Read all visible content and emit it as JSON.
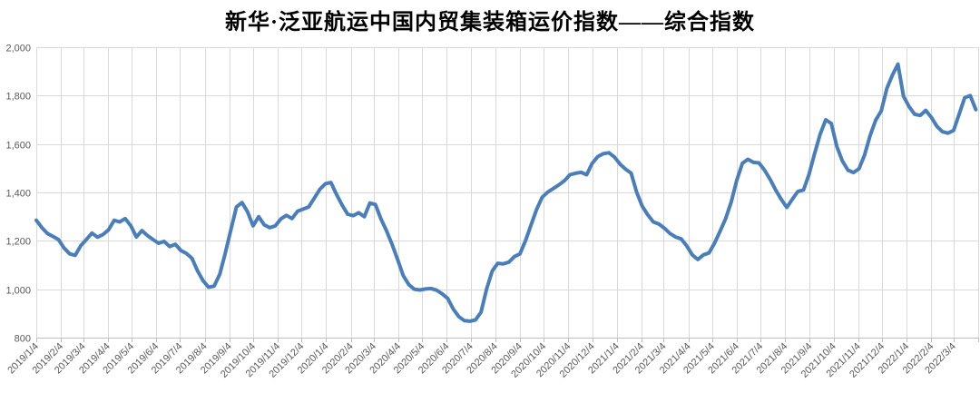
{
  "title": "新华·泛亚航运中国内贸集装箱运价指数——综合指数",
  "colors": {
    "line": "#4a7ebb",
    "gridline": "#d9d9d9",
    "axis_line": "#bfbfbf",
    "tick_text": "#595959",
    "title_text": "#000000",
    "background": "#ffffff"
  },
  "chart_data": {
    "type": "line",
    "title": "新华·泛亚航运中国内贸集装箱运价指数——综合指数",
    "xlabel": "",
    "ylabel": "",
    "ylim": [
      800,
      2000
    ],
    "y_tick_labels": [
      "2,000",
      "1,800",
      "1,600",
      "1,400",
      "1,200",
      "1,000",
      "800"
    ],
    "y_tick_values": [
      2000,
      1800,
      1600,
      1400,
      1200,
      1000,
      800
    ],
    "grid": true,
    "legend_position": "none",
    "x_axis_start": "2019/1/4",
    "x_axis_end": "2022/4/4",
    "x_tick_labels": [
      "2019/1/4",
      "2019/2/4",
      "2019/3/4",
      "2019/4/4",
      "2019/5/4",
      "2019/6/4",
      "2019/7/4",
      "2019/8/4",
      "2019/9/4",
      "2019/10/4",
      "2019/11/4",
      "2019/12/4",
      "2020/1/4",
      "2020/2/4",
      "2020/3/4",
      "2020/4/4",
      "2020/5/4",
      "2020/6/4",
      "2020/7/4",
      "2020/8/4",
      "2020/9/4",
      "2020/10/4",
      "2020/11/4",
      "2020/12/4",
      "2021/1/4",
      "2021/2/4",
      "2021/3/4",
      "2021/4/4",
      "2021/5/4",
      "2021/6/4",
      "2021/7/4",
      "2021/8/4",
      "2021/9/4",
      "2021/10/4",
      "2021/11/4",
      "2021/12/4",
      "2022/1/4",
      "2022/2/4",
      "2022/3/4"
    ],
    "series": [
      {
        "points": [
          [
            "2019/1/4",
            1285
          ],
          [
            "2019/1/11",
            1255
          ],
          [
            "2019/1/18",
            1230
          ],
          [
            "2019/1/25",
            1218
          ],
          [
            "2019/2/1",
            1205
          ],
          [
            "2019/2/8",
            1170
          ],
          [
            "2019/2/15",
            1146
          ],
          [
            "2019/2/22",
            1140
          ],
          [
            "2019/3/1",
            1180
          ],
          [
            "2019/3/8",
            1205
          ],
          [
            "2019/3/15",
            1232
          ],
          [
            "2019/3/22",
            1215
          ],
          [
            "2019/3/29",
            1226
          ],
          [
            "2019/4/5",
            1245
          ],
          [
            "2019/4/12",
            1285
          ],
          [
            "2019/4/19",
            1278
          ],
          [
            "2019/4/26",
            1292
          ],
          [
            "2019/5/3",
            1262
          ],
          [
            "2019/5/10",
            1216
          ],
          [
            "2019/5/17",
            1242
          ],
          [
            "2019/5/24",
            1222
          ],
          [
            "2019/5/31",
            1205
          ],
          [
            "2019/6/7",
            1190
          ],
          [
            "2019/6/14",
            1198
          ],
          [
            "2019/6/21",
            1176
          ],
          [
            "2019/6/28",
            1186
          ],
          [
            "2019/7/5",
            1160
          ],
          [
            "2019/7/12",
            1148
          ],
          [
            "2019/7/19",
            1128
          ],
          [
            "2019/7/26",
            1076
          ],
          [
            "2019/8/2",
            1035
          ],
          [
            "2019/8/9",
            1008
          ],
          [
            "2019/8/16",
            1013
          ],
          [
            "2019/8/23",
            1062
          ],
          [
            "2019/8/30",
            1150
          ],
          [
            "2019/9/6",
            1245
          ],
          [
            "2019/9/13",
            1340
          ],
          [
            "2019/9/20",
            1358
          ],
          [
            "2019/9/27",
            1320
          ],
          [
            "2019/10/4",
            1262
          ],
          [
            "2019/10/11",
            1300
          ],
          [
            "2019/10/18",
            1266
          ],
          [
            "2019/10/25",
            1254
          ],
          [
            "2019/11/1",
            1262
          ],
          [
            "2019/11/8",
            1291
          ],
          [
            "2019/11/15",
            1305
          ],
          [
            "2019/11/22",
            1292
          ],
          [
            "2019/11/29",
            1322
          ],
          [
            "2019/12/6",
            1331
          ],
          [
            "2019/12/13",
            1340
          ],
          [
            "2019/12/20",
            1376
          ],
          [
            "2019/12/27",
            1413
          ],
          [
            "2020/1/3",
            1436
          ],
          [
            "2020/1/10",
            1441
          ],
          [
            "2020/1/17",
            1392
          ],
          [
            "2020/1/24",
            1348
          ],
          [
            "2020/1/31",
            1310
          ],
          [
            "2020/2/7",
            1304
          ],
          [
            "2020/2/14",
            1316
          ],
          [
            "2020/2/21",
            1300
          ],
          [
            "2020/2/28",
            1356
          ],
          [
            "2020/3/6",
            1350
          ],
          [
            "2020/3/13",
            1291
          ],
          [
            "2020/3/20",
            1241
          ],
          [
            "2020/3/27",
            1185
          ],
          [
            "2020/4/3",
            1123
          ],
          [
            "2020/4/10",
            1057
          ],
          [
            "2020/4/17",
            1019
          ],
          [
            "2020/4/24",
            1000
          ],
          [
            "2020/5/1",
            997
          ],
          [
            "2020/5/8",
            1001
          ],
          [
            "2020/5/15",
            1003
          ],
          [
            "2020/5/22",
            996
          ],
          [
            "2020/5/29",
            981
          ],
          [
            "2020/6/5",
            962
          ],
          [
            "2020/6/12",
            918
          ],
          [
            "2020/6/19",
            887
          ],
          [
            "2020/6/26",
            870
          ],
          [
            "2020/7/3",
            868
          ],
          [
            "2020/7/10",
            873
          ],
          [
            "2020/7/17",
            905
          ],
          [
            "2020/7/24",
            1000
          ],
          [
            "2020/7/31",
            1075
          ],
          [
            "2020/8/7",
            1107
          ],
          [
            "2020/8/14",
            1105
          ],
          [
            "2020/8/21",
            1112
          ],
          [
            "2020/8/28",
            1135
          ],
          [
            "2020/9/4",
            1146
          ],
          [
            "2020/9/11",
            1200
          ],
          [
            "2020/9/18",
            1266
          ],
          [
            "2020/9/25",
            1330
          ],
          [
            "2020/10/2",
            1380
          ],
          [
            "2020/10/9",
            1401
          ],
          [
            "2020/10/16",
            1416
          ],
          [
            "2020/10/23",
            1431
          ],
          [
            "2020/10/30",
            1448
          ],
          [
            "2020/11/6",
            1473
          ],
          [
            "2020/11/13",
            1479
          ],
          [
            "2020/11/20",
            1483
          ],
          [
            "2020/11/27",
            1473
          ],
          [
            "2020/12/4",
            1520
          ],
          [
            "2020/12/11",
            1548
          ],
          [
            "2020/12/18",
            1560
          ],
          [
            "2020/12/25",
            1564
          ],
          [
            "2021/1/1",
            1546
          ],
          [
            "2021/1/8",
            1517
          ],
          [
            "2021/1/15",
            1496
          ],
          [
            "2021/1/22",
            1480
          ],
          [
            "2021/1/29",
            1400
          ],
          [
            "2021/2/5",
            1343
          ],
          [
            "2021/2/12",
            1307
          ],
          [
            "2021/2/19",
            1278
          ],
          [
            "2021/2/26",
            1269
          ],
          [
            "2021/3/5",
            1252
          ],
          [
            "2021/3/12",
            1230
          ],
          [
            "2021/3/19",
            1216
          ],
          [
            "2021/3/26",
            1208
          ],
          [
            "2021/4/2",
            1179
          ],
          [
            "2021/4/9",
            1142
          ],
          [
            "2021/4/16",
            1123
          ],
          [
            "2021/4/23",
            1142
          ],
          [
            "2021/4/30",
            1150
          ],
          [
            "2021/5/7",
            1190
          ],
          [
            "2021/5/14",
            1240
          ],
          [
            "2021/5/21",
            1292
          ],
          [
            "2021/5/28",
            1360
          ],
          [
            "2021/6/4",
            1450
          ],
          [
            "2021/6/11",
            1520
          ],
          [
            "2021/6/18",
            1537
          ],
          [
            "2021/6/25",
            1524
          ],
          [
            "2021/7/2",
            1522
          ],
          [
            "2021/7/9",
            1492
          ],
          [
            "2021/7/16",
            1454
          ],
          [
            "2021/7/23",
            1410
          ],
          [
            "2021/7/30",
            1372
          ],
          [
            "2021/8/6",
            1338
          ],
          [
            "2021/8/13",
            1372
          ],
          [
            "2021/8/20",
            1404
          ],
          [
            "2021/8/27",
            1410
          ],
          [
            "2021/9/3",
            1475
          ],
          [
            "2021/9/10",
            1560
          ],
          [
            "2021/9/17",
            1640
          ],
          [
            "2021/9/24",
            1700
          ],
          [
            "2021/10/1",
            1685
          ],
          [
            "2021/10/8",
            1590
          ],
          [
            "2021/10/15",
            1530
          ],
          [
            "2021/10/22",
            1492
          ],
          [
            "2021/10/29",
            1482
          ],
          [
            "2021/11/5",
            1498
          ],
          [
            "2021/11/12",
            1555
          ],
          [
            "2021/11/19",
            1636
          ],
          [
            "2021/11/26",
            1699
          ],
          [
            "2021/12/3",
            1737
          ],
          [
            "2021/12/10",
            1830
          ],
          [
            "2021/12/17",
            1885
          ],
          [
            "2021/12/24",
            1930
          ],
          [
            "2021/12/31",
            1797
          ],
          [
            "2022/1/7",
            1754
          ],
          [
            "2022/1/14",
            1723
          ],
          [
            "2022/1/21",
            1718
          ],
          [
            "2022/1/28",
            1739
          ],
          [
            "2022/2/4",
            1710
          ],
          [
            "2022/2/11",
            1673
          ],
          [
            "2022/2/18",
            1651
          ],
          [
            "2022/2/25",
            1645
          ],
          [
            "2022/3/4",
            1656
          ],
          [
            "2022/3/11",
            1723
          ],
          [
            "2022/3/18",
            1791
          ],
          [
            "2022/3/25",
            1800
          ],
          [
            "2022/4/1",
            1742
          ]
        ]
      }
    ]
  }
}
